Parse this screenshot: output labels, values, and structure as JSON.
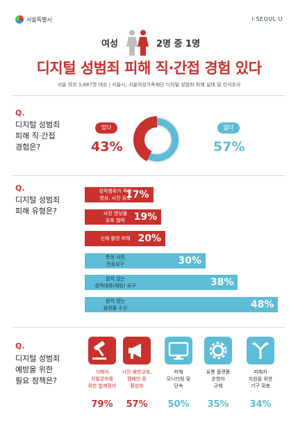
{
  "header": {
    "logo_text": "서울특별시",
    "brand_right": "I·SEOUL·U"
  },
  "subtitle": {
    "left": "여성",
    "right": "2명 중 1명"
  },
  "title": "디지털 성범죄 피해 직·간접 경험 있다",
  "source": "서울 여성 3,687명 대상  |  서울시, 서울여성가족재단 디지털 성범죄 피해 실태 및 인식조사",
  "q1": {
    "mark": "Q.",
    "text": [
      "디지털 성범죄",
      "피해 직·간접",
      "경험은?"
    ],
    "yes_label": "있다",
    "yes_pct": "43%",
    "no_label": "없다",
    "no_pct": "57%"
  },
  "q2": {
    "mark": "Q.",
    "text": [
      "디지털 성범죄",
      "피해 유형은?"
    ]
  },
  "q3": {
    "mark": "Q.",
    "text": [
      "디지털 성범죄",
      "예방을 위한",
      "필요 정책은?"
    ]
  },
  "colors": {
    "red": "#c8312d",
    "blue": "#5dbcd6",
    "donut_gray": "#e6e6e6"
  },
  "chart_data": [
    {
      "type": "pie",
      "categories": [
        "있다",
        "없다"
      ],
      "values": [
        43,
        57
      ]
    },
    {
      "type": "bar",
      "orientation": "horizontal",
      "categories": [
        [
          "성적행위가 찍힌",
          "영상, 사진 유포"
        ],
        [
          "사진 영상물",
          "유포 협박"
        ],
        [
          "신체 촬영 피해"
        ],
        [
          "특정 사진",
          "전송요구"
        ],
        [
          "원치 않는",
          "성적대화(채팅) 요구"
        ],
        [
          "원치 않는",
          "음란물 수신"
        ]
      ],
      "values": [
        17,
        19,
        20,
        30,
        38,
        48
      ],
      "value_labels": [
        "17%",
        "19%",
        "20%",
        "30%",
        "38%",
        "48%"
      ],
      "xlim": [
        0,
        50
      ]
    },
    {
      "type": "bar",
      "categories": [
        [
          "가해자",
          "처벌강화를",
          "위한 법제정비"
        ],
        [
          "시민 예방교육,",
          "캠페인 등",
          "활성화"
        ],
        [
          "피해",
          "모니터링 및",
          "단속"
        ],
        [
          "유통 플랫폼",
          "운영자",
          "규제"
        ],
        [
          "피해자",
          "지원을 위한",
          "기구 확충"
        ]
      ],
      "values": [
        79,
        57,
        50,
        35,
        34
      ],
      "value_labels": [
        "79%",
        "57%",
        "50%",
        "35%",
        "34%"
      ],
      "icons": [
        "gavel-icon",
        "megaphone-icon",
        "monitor-icon",
        "gear-icon",
        "arrows-icon"
      ]
    }
  ]
}
